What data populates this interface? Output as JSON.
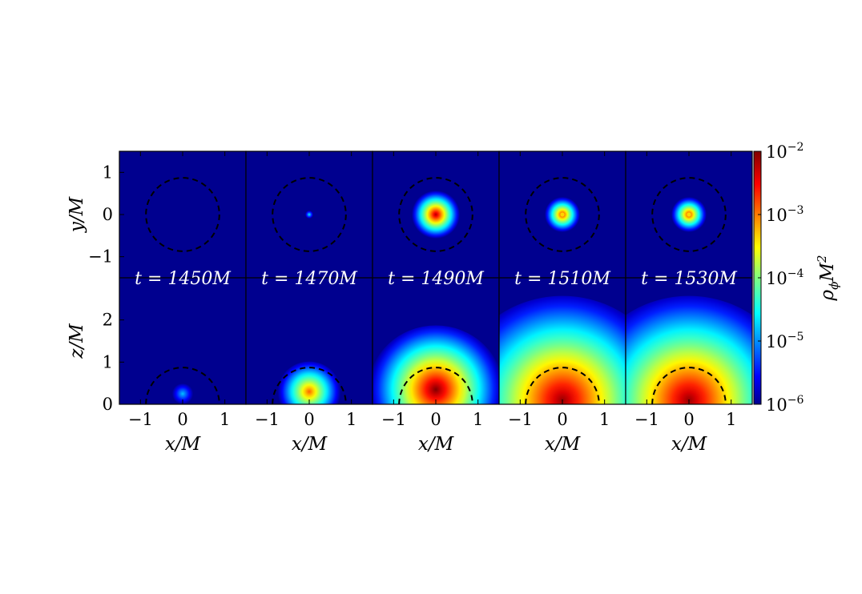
{
  "chart_data": {
    "type": "heatmap",
    "panels": [
      {
        "time_label": "t = 1450M",
        "top_peak_log": -9.0,
        "top_radius": 0.0,
        "side_peak_log": -4.8,
        "side_extent": 0.25,
        "side_center_z": 0.25
      },
      {
        "time_label": "t = 1470M",
        "top_peak_log": -4.6,
        "top_radius": 0.05,
        "side_peak_log": -2.9,
        "side_extent": 0.75,
        "side_center_z": 0.3
      },
      {
        "time_label": "t = 1490M",
        "top_peak_log": -2.2,
        "top_radius": 0.3,
        "side_peak_log": -2.0,
        "side_extent": 1.6,
        "side_center_z": 0.35
      },
      {
        "time_label": "t = 1510M",
        "top_peak_log": -2.6,
        "top_radius": 0.22,
        "side_peak_log": -2.1,
        "side_extent": 2.6,
        "side_center_z": 0.1
      },
      {
        "time_label": "t = 1530M",
        "top_peak_log": -2.6,
        "top_radius": 0.22,
        "side_peak_log": -2.1,
        "side_extent": 2.6,
        "side_center_z": 0.1
      }
    ],
    "top_row": {
      "ylabel": "y/M",
      "ylim": [
        -1.5,
        1.5
      ],
      "yticks": [
        "−1",
        "0",
        "1"
      ],
      "ytick_values": [
        -1,
        0,
        1
      ]
    },
    "bottom_row": {
      "ylabel": "z/M",
      "ylim": [
        0,
        3
      ],
      "yticks": [
        "0",
        "1",
        "2"
      ],
      "ytick_values": [
        0,
        1,
        2
      ]
    },
    "xaxis": {
      "xlabel": "x/M",
      "xlim": [
        -1.5,
        1.5
      ],
      "xticks": [
        "−1",
        "0",
        "1"
      ],
      "xtick_values": [
        -1,
        0,
        1
      ]
    },
    "horizon_radius": 0.87,
    "colorbar": {
      "label": "ρ",
      "label_sub": "ϕ",
      "label_tail": "M",
      "label_sup": "2",
      "scale": "log",
      "range": [
        1e-06,
        0.01
      ],
      "ticks": [
        {
          "base": "10",
          "exp": "−2",
          "log": -2
        },
        {
          "base": "10",
          "exp": "−3",
          "log": -3
        },
        {
          "base": "10",
          "exp": "−4",
          "log": -4
        },
        {
          "base": "10",
          "exp": "−5",
          "log": -5
        },
        {
          "base": "10",
          "exp": "−6",
          "log": -6
        }
      ],
      "colormap": "jet"
    },
    "background_color": "#00008f"
  }
}
